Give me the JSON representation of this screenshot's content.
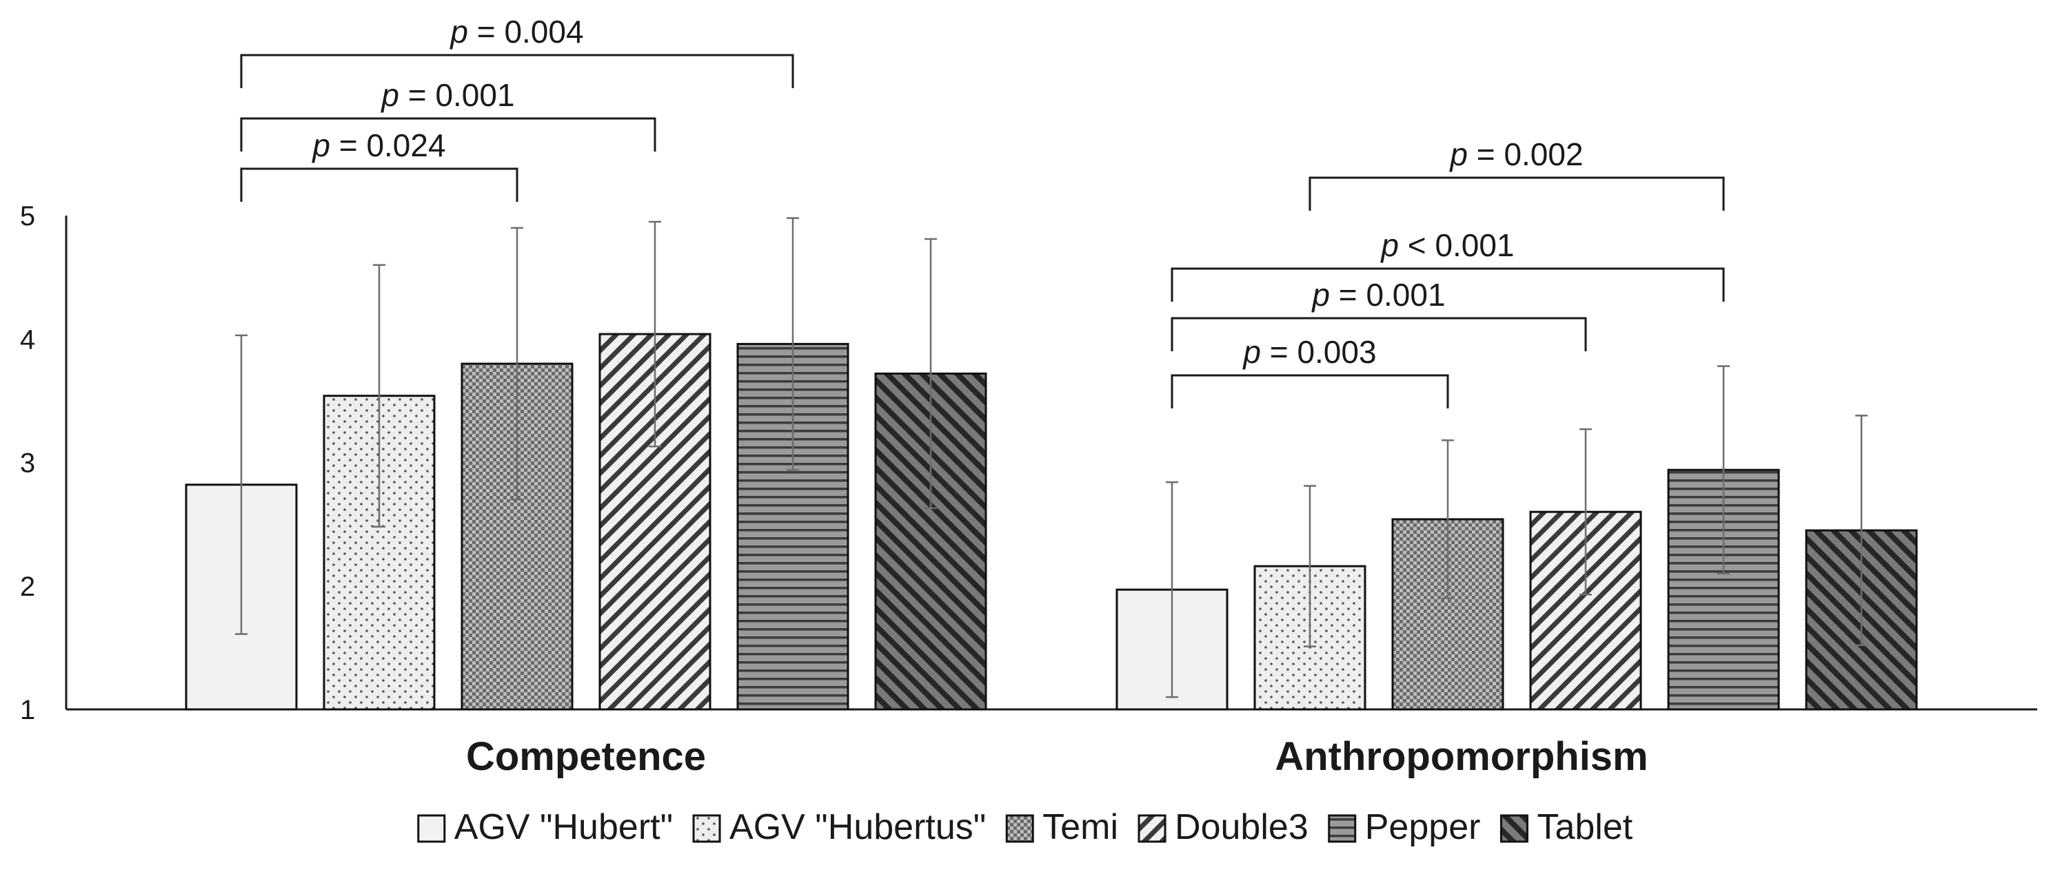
{
  "chart_data": {
    "type": "bar",
    "title": "",
    "xlabel": "",
    "ylabel": "",
    "ylim": [
      1,
      5
    ],
    "yticks": [
      "1",
      "2",
      "3",
      "4",
      "5"
    ],
    "grid": false,
    "legend_position": "bottom",
    "categories": [
      "Competence",
      "Anthropomorphism"
    ],
    "series": [
      {
        "name": "AGV \"Hubert\"",
        "pattern": "plain",
        "values": [
          2.82,
          1.97
        ],
        "errors": [
          1.21,
          0.87
        ]
      },
      {
        "name": "AGV \"Hubertus\"",
        "pattern": "dots",
        "values": [
          3.54,
          2.16
        ],
        "errors": [
          1.06,
          0.65
        ]
      },
      {
        "name": "Temi",
        "pattern": "checker",
        "values": [
          3.8,
          2.54
        ],
        "errors": [
          1.1,
          0.64
        ]
      },
      {
        "name": "Double3",
        "pattern": "diag",
        "values": [
          4.04,
          2.6
        ],
        "errors": [
          0.91,
          0.67
        ]
      },
      {
        "name": "Pepper",
        "pattern": "hlines",
        "values": [
          3.96,
          2.94
        ],
        "errors": [
          1.02,
          0.84
        ]
      },
      {
        "name": "Tablet",
        "pattern": "darkdiag",
        "values": [
          3.72,
          2.45
        ],
        "errors": [
          1.09,
          0.93
        ]
      }
    ],
    "annotations": [
      {
        "category": 0,
        "from_series": 0,
        "to_series": 2,
        "prefix": "p",
        "text": " = 0.024",
        "level": 1
      },
      {
        "category": 0,
        "from_series": 0,
        "to_series": 3,
        "prefix": "p",
        "text": " = 0.001",
        "level": 2
      },
      {
        "category": 0,
        "from_series": 0,
        "to_series": 4,
        "prefix": "p",
        "text": " = 0.004",
        "level": 3
      },
      {
        "category": 1,
        "from_series": 0,
        "to_series": 2,
        "prefix": "p",
        "text": " = 0.003",
        "level": 1
      },
      {
        "category": 1,
        "from_series": 0,
        "to_series": 3,
        "prefix": "p",
        "text": " = 0.001",
        "level": 2
      },
      {
        "category": 1,
        "from_series": 0,
        "to_series": 4,
        "prefix": "p",
        "text": " < 0.001",
        "level": 3
      },
      {
        "category": 1,
        "from_series": 1,
        "to_series": 4,
        "prefix": "p",
        "text": " = 0.002",
        "level": 4
      }
    ]
  }
}
